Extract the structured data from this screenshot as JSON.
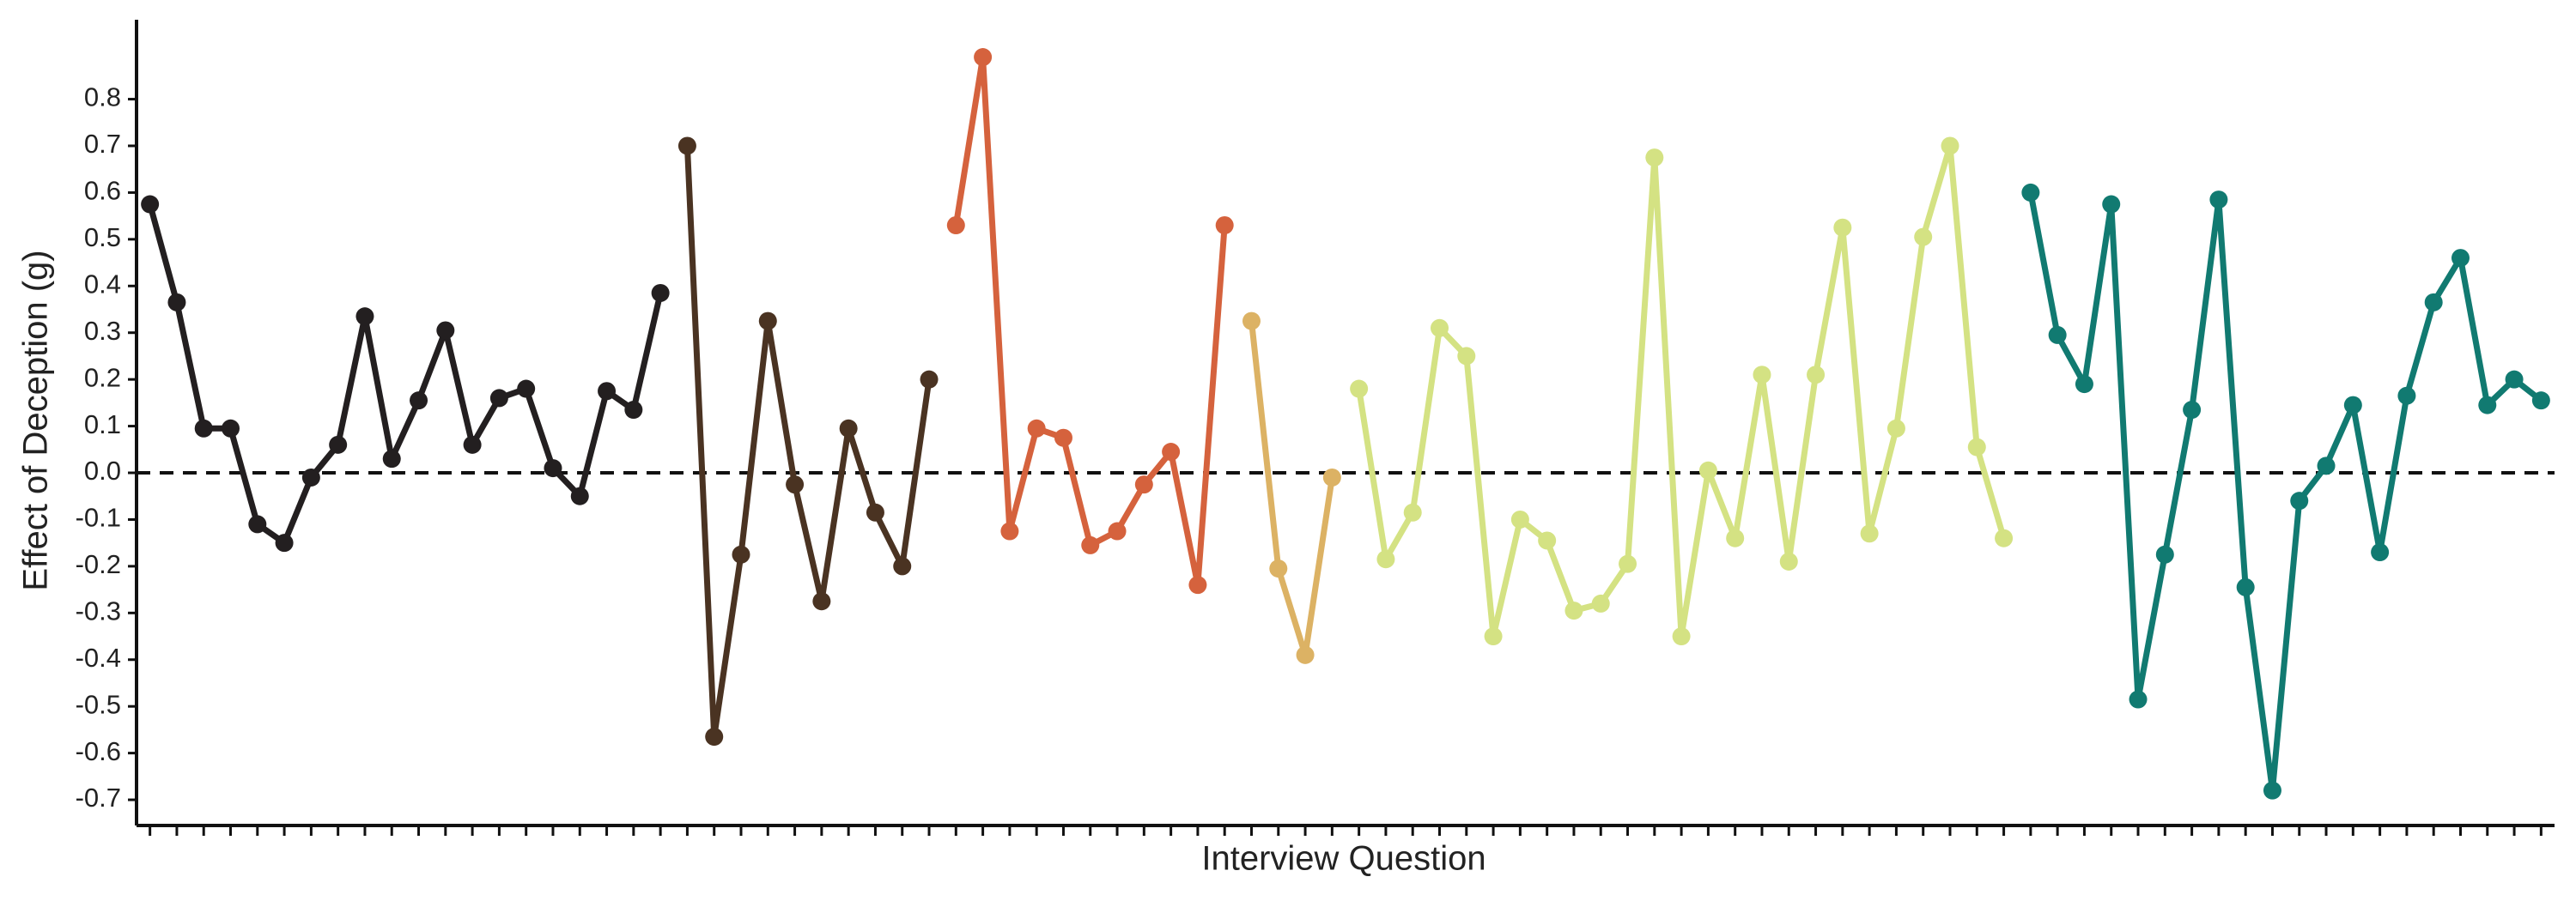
{
  "chart_data": {
    "type": "line",
    "y_label": "Effect of Deception (g)",
    "x_label": "Interview Question",
    "categories": [
      null,
      null,
      null,
      null,
      null,
      null,
      null,
      null,
      null,
      null,
      null,
      null,
      null,
      null,
      null,
      null,
      null,
      null,
      null,
      null,
      null,
      null,
      null,
      null,
      null,
      null,
      null,
      null,
      null,
      null,
      null,
      null,
      null,
      null,
      null,
      null,
      null,
      null,
      null,
      null,
      null,
      null,
      null,
      null,
      null,
      null,
      null,
      null,
      null,
      null,
      null,
      null,
      null,
      null,
      null,
      null,
      null,
      null,
      null,
      null,
      null,
      null,
      null,
      null,
      null,
      null,
      null,
      null,
      null,
      null,
      null,
      null,
      null,
      null,
      null,
      null,
      null,
      null,
      null,
      null,
      null,
      null,
      null,
      null,
      null,
      null,
      null,
      null,
      null,
      null
    ],
    "series": [
      {
        "color": "#231f20",
        "values": [
          0.575,
          0.365,
          0.095,
          0.095,
          -0.11,
          -0.15,
          -0.01,
          0.06,
          0.335,
          0.03,
          0.155,
          0.305,
          0.06,
          0.16,
          0.18,
          0.01,
          -0.05,
          0.175,
          0.135,
          0.385,
          null,
          null,
          null,
          null,
          null,
          null,
          null,
          null,
          null,
          null,
          null,
          null,
          null,
          null,
          null,
          null,
          null,
          null,
          null,
          null,
          null,
          null,
          null,
          null,
          null,
          null,
          null,
          null,
          null,
          null,
          null,
          null,
          null,
          null,
          null,
          null,
          null,
          null,
          null,
          null,
          null,
          null,
          null,
          null,
          null,
          null,
          null,
          null,
          null,
          null,
          null,
          null,
          null,
          null,
          null,
          null,
          null,
          null,
          null,
          null,
          null,
          null,
          null,
          null,
          null,
          null,
          null,
          null,
          null,
          null
        ]
      },
      {
        "color": "#4a3322",
        "values": [
          null,
          null,
          null,
          null,
          null,
          null,
          null,
          null,
          null,
          null,
          null,
          null,
          null,
          null,
          null,
          null,
          null,
          null,
          null,
          null,
          0.7,
          -0.565,
          -0.175,
          0.325,
          -0.025,
          -0.275,
          0.095,
          -0.085,
          -0.2,
          0.2,
          null,
          null,
          null,
          null,
          null,
          null,
          null,
          null,
          null,
          null,
          null,
          null,
          null,
          null,
          null,
          null,
          null,
          null,
          null,
          null,
          null,
          null,
          null,
          null,
          null,
          null,
          null,
          null,
          null,
          null,
          null,
          null,
          null,
          null,
          null,
          null,
          null,
          null,
          null,
          null,
          null,
          null,
          null,
          null,
          null,
          null,
          null,
          null,
          null,
          null,
          null,
          null,
          null,
          null,
          null,
          null,
          null,
          null,
          null,
          null
        ]
      },
      {
        "color": "#d5623d",
        "values": [
          null,
          null,
          null,
          null,
          null,
          null,
          null,
          null,
          null,
          null,
          null,
          null,
          null,
          null,
          null,
          null,
          null,
          null,
          null,
          null,
          null,
          null,
          null,
          null,
          null,
          null,
          null,
          null,
          null,
          null,
          0.53,
          0.89,
          -0.125,
          0.095,
          0.075,
          -0.155,
          -0.125,
          -0.025,
          0.045,
          -0.24,
          0.53,
          null,
          null,
          null,
          null,
          null,
          null,
          null,
          null,
          null,
          null,
          null,
          null,
          null,
          null,
          null,
          null,
          null,
          null,
          null,
          null,
          null,
          null,
          null,
          null,
          null,
          null,
          null,
          null,
          null,
          null,
          null,
          null,
          null,
          null,
          null,
          null,
          null,
          null,
          null,
          null,
          null,
          null,
          null,
          null,
          null,
          null,
          null,
          null,
          null
        ]
      },
      {
        "color": "#dcb264",
        "values": [
          null,
          null,
          null,
          null,
          null,
          null,
          null,
          null,
          null,
          null,
          null,
          null,
          null,
          null,
          null,
          null,
          null,
          null,
          null,
          null,
          null,
          null,
          null,
          null,
          null,
          null,
          null,
          null,
          null,
          null,
          null,
          null,
          null,
          null,
          null,
          null,
          null,
          null,
          null,
          null,
          null,
          0.325,
          -0.205,
          -0.39,
          -0.01,
          null,
          null,
          null,
          null,
          null,
          null,
          null,
          null,
          null,
          null,
          null,
          null,
          null,
          null,
          null,
          null,
          null,
          null,
          null,
          null,
          null,
          null,
          null,
          null,
          null,
          null,
          null,
          null,
          null,
          null,
          null,
          null,
          null,
          null,
          null,
          null,
          null,
          null,
          null,
          null,
          null,
          null,
          null,
          null,
          null
        ]
      },
      {
        "color": "#d4e283",
        "values": [
          null,
          null,
          null,
          null,
          null,
          null,
          null,
          null,
          null,
          null,
          null,
          null,
          null,
          null,
          null,
          null,
          null,
          null,
          null,
          null,
          null,
          null,
          null,
          null,
          null,
          null,
          null,
          null,
          null,
          null,
          null,
          null,
          null,
          null,
          null,
          null,
          null,
          null,
          null,
          null,
          null,
          null,
          null,
          null,
          null,
          0.18,
          -0.185,
          -0.085,
          0.31,
          0.25,
          -0.35,
          -0.1,
          -0.145,
          -0.295,
          -0.28,
          -0.195,
          0.675,
          -0.35,
          0.005,
          -0.14,
          0.21,
          -0.19,
          0.21,
          0.525,
          -0.13,
          0.095,
          0.505,
          0.7,
          0.055,
          -0.14,
          null,
          null,
          null,
          null,
          null,
          null,
          null,
          null,
          null,
          null,
          null,
          null,
          null,
          null,
          null,
          null,
          null,
          null,
          null,
          null
        ]
      },
      {
        "color": "#117a71",
        "values": [
          null,
          null,
          null,
          null,
          null,
          null,
          null,
          null,
          null,
          null,
          null,
          null,
          null,
          null,
          null,
          null,
          null,
          null,
          null,
          null,
          null,
          null,
          null,
          null,
          null,
          null,
          null,
          null,
          null,
          null,
          null,
          null,
          null,
          null,
          null,
          null,
          null,
          null,
          null,
          null,
          null,
          null,
          null,
          null,
          null,
          null,
          null,
          null,
          null,
          null,
          null,
          null,
          null,
          null,
          null,
          null,
          null,
          null,
          null,
          null,
          null,
          null,
          null,
          null,
          null,
          null,
          null,
          null,
          null,
          null,
          0.6,
          0.295,
          0.19,
          0.575,
          -0.485,
          -0.175,
          0.135,
          0.585,
          -0.245,
          -0.68,
          -0.06,
          0.015,
          0.145,
          -0.17,
          0.165,
          0.365,
          0.46,
          0.145,
          0.2,
          0.155
        ]
      }
    ],
    "ylim": [
      -0.755,
      0.97
    ],
    "yticks": [
      -0.7,
      -0.6,
      -0.5,
      -0.4,
      -0.3,
      -0.2,
      -0.1,
      {
        "value": 0,
        "label": "0.0"
      },
      0.1,
      0.2,
      0.3,
      0.4,
      0.5,
      0.6,
      0.7,
      0.8
    ],
    "reference_line": 0,
    "grid": false
  }
}
